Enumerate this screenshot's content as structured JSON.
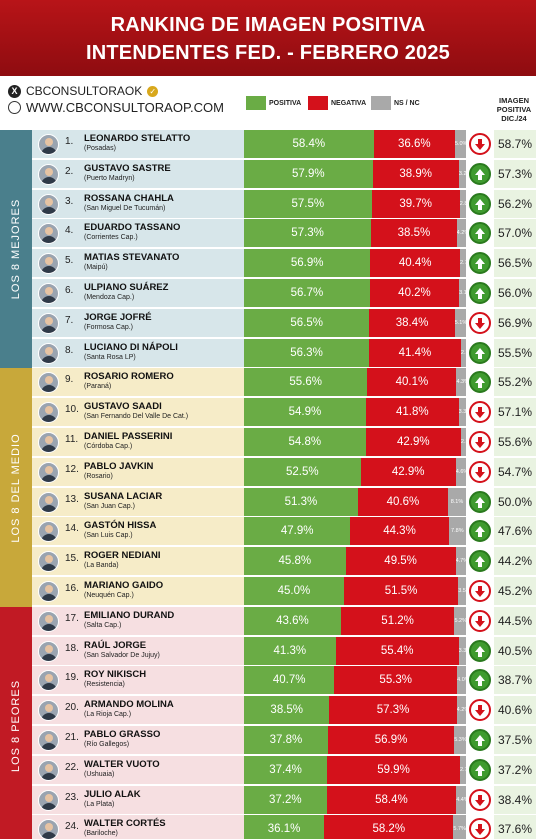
{
  "title": {
    "line1": "RANKING DE IMAGEN POSITIVA",
    "line2": "INTENDENTES FED. - FEBRERO 2025"
  },
  "brand": {
    "handle": "CBCONSULTORAOK",
    "website": "WWW.CBCONSULTORAOP.COM"
  },
  "legend": {
    "positive": "POSITIVA",
    "negative": "NEGATIVA",
    "ns_nc": "NS / NC",
    "dic_header": "IMAGEN POSITIVA DIC./24"
  },
  "colors": {
    "positive": "#6aac45",
    "negative": "#d4111b",
    "ns_nc": "#a9a9a9",
    "title_band": "#b81418",
    "group_top": "#4a7f8c",
    "group_mid": "#c8a83a",
    "group_bottom": "#c11a24"
  },
  "groups": [
    {
      "label": "LOS 8 MEJORES",
      "bg": "#d7e6ea",
      "band": "#4a7f8c",
      "start": 0,
      "count": 8
    },
    {
      "label": "LOS 8 DEL MEDIO",
      "bg": "#f6ecc8",
      "band": "#c8a83a",
      "start": 8,
      "count": 8
    },
    {
      "label": "LOS 8 PEORES",
      "bg": "#f6dfe1",
      "band": "#c11a24",
      "start": 16,
      "count": 8
    }
  ],
  "chart_data": {
    "type": "bar",
    "title": "RANKING DE IMAGEN POSITIVA INTENDENTES FED. - FEBRERO 2025",
    "series_names": [
      "POSITIVA",
      "NEGATIVA",
      "NS / NC",
      "IMAGEN POSITIVA DIC./24"
    ],
    "rows": [
      {
        "rank": "1.",
        "name": "LEONARDO STELATTO",
        "city": "(Posadas)",
        "pos": 58.4,
        "neg": 36.6,
        "ns": 5.0,
        "trend": "down",
        "dic": 58.7
      },
      {
        "rank": "2.",
        "name": "GUSTAVO SASTRE",
        "city": "(Puerto Madryn)",
        "pos": 57.9,
        "neg": 38.9,
        "ns": 3.2,
        "trend": "up",
        "dic": 57.3
      },
      {
        "rank": "3.",
        "name": "ROSSANA CHAHLA",
        "city": "(San Miguel De Tucumán)",
        "pos": 57.5,
        "neg": 39.7,
        "ns": 2.8,
        "trend": "up",
        "dic": 56.2
      },
      {
        "rank": "4.",
        "name": "EDUARDO TASSANO",
        "city": "(Corrientes Cap.)",
        "pos": 57.3,
        "neg": 38.5,
        "ns": 4.2,
        "trend": "up",
        "dic": 57.0
      },
      {
        "rank": "5.",
        "name": "MATIAS STEVANATO",
        "city": "(Maipú)",
        "pos": 56.9,
        "neg": 40.4,
        "ns": 2.7,
        "trend": "up",
        "dic": 56.5
      },
      {
        "rank": "6.",
        "name": "ULPIANO SUÁREZ",
        "city": "(Mendoza Cap.)",
        "pos": 56.7,
        "neg": 40.2,
        "ns": 3.1,
        "trend": "up",
        "dic": 56.0
      },
      {
        "rank": "7.",
        "name": "JORGE JOFRÉ",
        "city": "(Formosa Cap.)",
        "pos": 56.5,
        "neg": 38.4,
        "ns": 5.1,
        "trend": "down",
        "dic": 56.9
      },
      {
        "rank": "8.",
        "name": "LUCIANO DI NÁPOLI",
        "city": "(Santa Rosa LP)",
        "pos": 56.3,
        "neg": 41.4,
        "ns": 2.3,
        "trend": "up",
        "dic": 55.5
      },
      {
        "rank": "9.",
        "name": "ROSARIO ROMERO",
        "city": "(Paraná)",
        "pos": 55.6,
        "neg": 40.1,
        "ns": 4.3,
        "trend": "up",
        "dic": 55.2
      },
      {
        "rank": "10.",
        "name": "GUSTAVO SAADI",
        "city": "(San Fernando Del Valle De Cat.)",
        "pos": 54.9,
        "neg": 41.8,
        "ns": 3.3,
        "trend": "down",
        "dic": 57.1
      },
      {
        "rank": "11.",
        "name": "DANIEL PASSERINI",
        "city": "(Córdoba Cap.)",
        "pos": 54.8,
        "neg": 42.9,
        "ns": 2.3,
        "trend": "down",
        "dic": 55.6
      },
      {
        "rank": "12.",
        "name": "PABLO JAVKIN",
        "city": "(Rosario)",
        "pos": 52.5,
        "neg": 42.9,
        "ns": 4.6,
        "trend": "down",
        "dic": 54.7
      },
      {
        "rank": "13.",
        "name": "SUSANA LACIAR",
        "city": "(San Juan Cap.)",
        "pos": 51.3,
        "neg": 40.6,
        "ns": 8.1,
        "trend": "up",
        "dic": 50.0
      },
      {
        "rank": "14.",
        "name": "GASTÓN HISSA",
        "city": "(San Luis Cap.)",
        "pos": 47.9,
        "neg": 44.3,
        "ns": 7.8,
        "trend": "up",
        "dic": 47.6
      },
      {
        "rank": "15.",
        "name": "ROGER NEDIANI",
        "city": "(La Banda)",
        "pos": 45.8,
        "neg": 49.5,
        "ns": 4.7,
        "trend": "up",
        "dic": 44.2
      },
      {
        "rank": "16.",
        "name": "MARIANO GAIDO",
        "city": "(Neuquén Cap.)",
        "pos": 45.0,
        "neg": 51.5,
        "ns": 3.5,
        "trend": "down",
        "dic": 45.2
      },
      {
        "rank": "17.",
        "name": "EMILIANO DURAND",
        "city": "(Salta Cap.)",
        "pos": 43.6,
        "neg": 51.2,
        "ns": 5.2,
        "trend": "down",
        "dic": 44.5
      },
      {
        "rank": "18.",
        "name": "RAÚL JORGE",
        "city": "(San Salvador De Jujuy)",
        "pos": 41.3,
        "neg": 55.4,
        "ns": 3.3,
        "trend": "up",
        "dic": 40.5
      },
      {
        "rank": "19.",
        "name": "ROY NIKISCH",
        "city": "(Resistencia)",
        "pos": 40.7,
        "neg": 55.3,
        "ns": 4.0,
        "trend": "up",
        "dic": 38.7
      },
      {
        "rank": "20.",
        "name": "ARMANDO MOLINA",
        "city": "(La Rioja Cap.)",
        "pos": 38.5,
        "neg": 57.3,
        "ns": 4.2,
        "trend": "down",
        "dic": 40.6
      },
      {
        "rank": "21.",
        "name": "PABLO GRASSO",
        "city": "(Río Gallegos)",
        "pos": 37.8,
        "neg": 56.9,
        "ns": 5.3,
        "trend": "up",
        "dic": 37.5
      },
      {
        "rank": "22.",
        "name": "WALTER VUOTO",
        "city": "(Ushuaia)",
        "pos": 37.4,
        "neg": 59.9,
        "ns": 2.7,
        "trend": "up",
        "dic": 37.2
      },
      {
        "rank": "23.",
        "name": "JULIO ALAK",
        "city": "(La Plata)",
        "pos": 37.2,
        "neg": 58.4,
        "ns": 4.4,
        "trend": "down",
        "dic": 38.4
      },
      {
        "rank": "24.",
        "name": "WALTER CORTÉS",
        "city": "(Bariloche)",
        "pos": 36.1,
        "neg": 58.2,
        "ns": 5.7,
        "trend": "down",
        "dic": 37.6
      }
    ]
  }
}
